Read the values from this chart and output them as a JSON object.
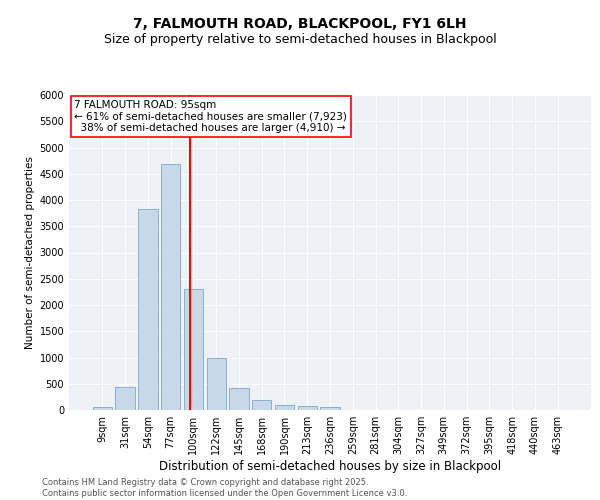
{
  "title1": "7, FALMOUTH ROAD, BLACKPOOL, FY1 6LH",
  "title2": "Size of property relative to semi-detached houses in Blackpool",
  "xlabel": "Distribution of semi-detached houses by size in Blackpool",
  "ylabel": "Number of semi-detached properties",
  "categories": [
    "9sqm",
    "31sqm",
    "54sqm",
    "77sqm",
    "100sqm",
    "122sqm",
    "145sqm",
    "168sqm",
    "190sqm",
    "213sqm",
    "236sqm",
    "259sqm",
    "281sqm",
    "304sqm",
    "327sqm",
    "349sqm",
    "372sqm",
    "395sqm",
    "418sqm",
    "440sqm",
    "463sqm"
  ],
  "values": [
    50,
    440,
    3820,
    4680,
    2300,
    1000,
    410,
    200,
    95,
    70,
    50,
    0,
    0,
    0,
    0,
    0,
    0,
    0,
    0,
    0,
    0
  ],
  "bar_color": "#c8d8ea",
  "bar_edge_color": "#7aaac8",
  "vline_color": "red",
  "vline_x_index": 3.85,
  "annotation_text": "7 FALMOUTH ROAD: 95sqm\n← 61% of semi-detached houses are smaller (7,923)\n  38% of semi-detached houses are larger (4,910) →",
  "annotation_box_color": "white",
  "annotation_box_edge": "red",
  "ylim_max": 6000,
  "yticks": [
    0,
    500,
    1000,
    1500,
    2000,
    2500,
    3000,
    3500,
    4000,
    4500,
    5000,
    5500,
    6000
  ],
  "bg_color": "#eef2f7",
  "grid_color": "white",
  "footer": "Contains HM Land Registry data © Crown copyright and database right 2025.\nContains public sector information licensed under the Open Government Licence v3.0.",
  "title1_fontsize": 10,
  "title2_fontsize": 9,
  "xlabel_fontsize": 8.5,
  "ylabel_fontsize": 7.5,
  "tick_fontsize": 7,
  "annotation_fontsize": 7.5,
  "footer_fontsize": 6
}
